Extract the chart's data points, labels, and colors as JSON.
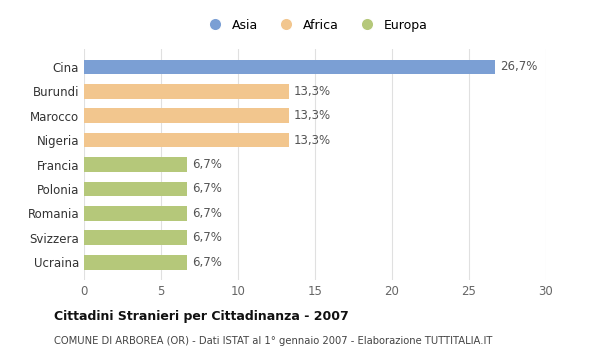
{
  "categories": [
    "Cina",
    "Burundi",
    "Marocco",
    "Nigeria",
    "Francia",
    "Polonia",
    "Romania",
    "Svizzera",
    "Ucraina"
  ],
  "values": [
    26.7,
    13.3,
    13.3,
    13.3,
    6.7,
    6.7,
    6.7,
    6.7,
    6.7
  ],
  "colors": [
    "#7b9fd4",
    "#f2c68e",
    "#f2c68e",
    "#f2c68e",
    "#b5c87a",
    "#b5c87a",
    "#b5c87a",
    "#b5c87a",
    "#b5c87a"
  ],
  "labels": [
    "26,7%",
    "13,3%",
    "13,3%",
    "13,3%",
    "6,7%",
    "6,7%",
    "6,7%",
    "6,7%",
    "6,7%"
  ],
  "legend_labels": [
    "Asia",
    "Africa",
    "Europa"
  ],
  "legend_colors": [
    "#7b9fd4",
    "#f2c68e",
    "#b5c87a"
  ],
  "xlim": [
    0,
    30
  ],
  "xticks": [
    0,
    5,
    10,
    15,
    20,
    25,
    30
  ],
  "title": "Cittadini Stranieri per Cittadinanza - 2007",
  "subtitle": "COMUNE DI ARBOREA (OR) - Dati ISTAT al 1° gennaio 2007 - Elaborazione TUTTITALIA.IT",
  "background_color": "#ffffff",
  "plot_bg_color": "#ffffff",
  "grid_color": "#e0e0e0"
}
